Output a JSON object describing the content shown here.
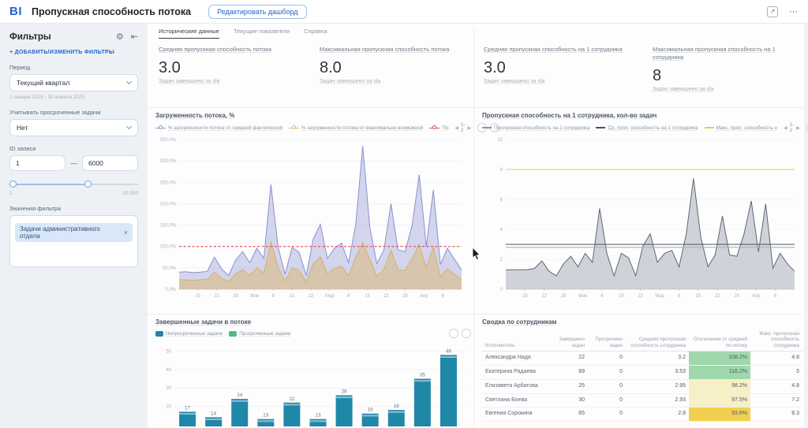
{
  "header": {
    "logo": "BI",
    "title": "Пропускная способность потока",
    "edit_button": "Редактировать дашборд",
    "export_icon": "↗",
    "more_icon": "⋯"
  },
  "sidebar": {
    "title": "Фильтры",
    "gear_icon": "⚙",
    "collapse_icon": "⇤",
    "add_filters_link": "+ ДОБАВИТЬ/ИЗМЕНИТЬ ФИЛЬТРЫ",
    "period": {
      "label": "Период",
      "value": "Текущий квартал",
      "hint": "1 января 2025 - 30 апреля 2025"
    },
    "overdue": {
      "label": "Учитывать просроченные задачи",
      "value": "Нет"
    },
    "id_range": {
      "label": "ID записи",
      "from": "1",
      "to": "6000",
      "min": "1",
      "max": "10 000",
      "dash": "—"
    },
    "filter_values": {
      "label": "Значения фильтра",
      "chip": "Задачи административного отдела",
      "chip_close": "×"
    }
  },
  "tabs": [
    {
      "label": "Исторические данные",
      "active": true
    },
    {
      "label": "Текущие показатели",
      "active": false
    },
    {
      "label": "Справка",
      "active": false
    }
  ],
  "kpis": [
    {
      "label": "Средняя пропускная способность потока",
      "value": "3.0",
      "sub": "Задач завершено за sla"
    },
    {
      "label": "Максимальная пропускная способность потока",
      "value": "8.0",
      "sub": "Задач завершено за sla"
    },
    {
      "label": "Средняя пропускная способность на 1 сотрудника",
      "value": "3.0",
      "sub": "Задач завершено за sla"
    },
    {
      "label": "Максимальная пропускная способность на 1 сотрудника",
      "value": "8",
      "sub": "Задач завершено за sla"
    }
  ],
  "panels": {
    "load_chart": {
      "title": "Загруженность потока, %",
      "legend": [
        {
          "label": "% загруженности потока от средней фактической",
          "color": "#8b90cf",
          "marker": "toggle"
        },
        {
          "label": "% загруженности потока от максимально возможной",
          "color": "#d9bd62",
          "marker": "toggle"
        },
        {
          "label": "По",
          "color": "#e5484d",
          "marker": "toggle"
        }
      ],
      "pagination": "1-2",
      "pager_prev": "◀",
      "pager_next": "▶"
    },
    "per_employee_chart": {
      "title": "Пропускная способность на 1 сотрудника, кол-во задач",
      "legend": [
        {
          "label": "Пропускная способность на 1 сотрудника",
          "color": "#8d97a3",
          "marker": "line"
        },
        {
          "label": "Ср. проп. способность на 1 сотрудника",
          "color": "#4a515c",
          "marker": "line"
        },
        {
          "label": "Макс. проп. способность н",
          "color": "#d6d44e",
          "marker": "line"
        }
      ],
      "pagination": "1-2",
      "pager_prev": "◀",
      "pager_next": "▶"
    },
    "completed_chart": {
      "title": "Завершенные задачи в потоке",
      "legend": [
        {
          "label": "Непросроченные задачи",
          "color": "#1f87a8",
          "marker": "square"
        },
        {
          "label": "Просроченные задачи",
          "color": "#57b87b",
          "marker": "square"
        }
      ]
    },
    "summary_table": {
      "title": "Сводка по сотрудникам",
      "columns": [
        "Исполнитель",
        "Завершено задач",
        "Просрочено задач",
        "Средняя пропускная способность сотрудника",
        "Отклонение от средней по потоку",
        "Макс. пропускная способность сотрудника"
      ],
      "rows": [
        {
          "name": "Александра Нада",
          "done": "22",
          "overdue": "0",
          "avg": "3.2",
          "deviation": "108.2%",
          "deviation_color": "#9fd8ad",
          "max": "4.8"
        },
        {
          "name": "Екатерина Радаева",
          "done": "89",
          "overdue": "0",
          "avg": "3.53",
          "deviation": "116.2%",
          "deviation_color": "#9fd8ad",
          "max": "5"
        },
        {
          "name": "Елизавета Арбатова",
          "done": "25",
          "overdue": "0",
          "avg": "2.95",
          "deviation": "98.2%",
          "deviation_color": "#f7efc6",
          "max": "4.8"
        },
        {
          "name": "Светлана Боева",
          "done": "30",
          "overdue": "0",
          "avg": "2.93",
          "deviation": "97.5%",
          "deviation_color": "#f7efc6",
          "max": "7.2"
        },
        {
          "name": "Евгения Сорокина",
          "done": "65",
          "overdue": "0",
          "avg": "2.8",
          "deviation": "93.8%",
          "deviation_color": "#f2cf4e",
          "max": "8.3"
        }
      ]
    }
  },
  "chart_data": [
    {
      "type": "area",
      "title": "Загруженность потока, %",
      "ylim": [
        0,
        350
      ],
      "yticks": [
        0,
        50,
        100,
        150,
        200,
        250,
        300,
        350
      ],
      "ytick_format": "pct",
      "x_ticks": [
        "15",
        "22",
        "29",
        "Фев",
        "8",
        "15",
        "22",
        "Мар",
        "8",
        "15",
        "22",
        "29",
        "Апр",
        "6"
      ],
      "series": [
        {
          "name": "% загруженности потока от средней фактической",
          "color": "#8b90cf",
          "fill": "rgba(153,158,215,0.42)",
          "values": [
            40,
            41,
            39,
            40,
            42,
            75,
            48,
            32,
            68,
            88,
            62,
            96,
            72,
            245,
            100,
            35,
            98,
            86,
            32,
            118,
            152,
            72,
            96,
            108,
            62,
            150,
            335,
            145,
            60,
            92,
            200,
            92,
            88,
            150,
            268,
            100,
            232,
            58,
            96,
            70,
            45
          ]
        },
        {
          "name": "% загруженности потока от максимально возможной",
          "color": "#d3b264",
          "fill": "rgba(219,184,110,0.5)",
          "values": [
            22,
            22,
            21,
            22,
            23,
            40,
            26,
            18,
            36,
            46,
            33,
            50,
            38,
            112,
            52,
            19,
            50,
            44,
            17,
            60,
            76,
            37,
            49,
            54,
            32,
            75,
            110,
            70,
            30,
            46,
            92,
            46,
            44,
            72,
            105,
            50,
            98,
            29,
            48,
            35,
            23
          ]
        }
      ],
      "ref_lines": [
        {
          "value": 100,
          "color": "#e5484d",
          "style": "dashed",
          "label": "По"
        }
      ]
    },
    {
      "type": "area",
      "title": "Пропускная способность на 1 сотрудника, кол-во задач",
      "ylim": [
        0,
        10
      ],
      "yticks": [
        0,
        2,
        4,
        6,
        8,
        10
      ],
      "ytick_format": "int",
      "x_ticks": [
        "15",
        "22",
        "29",
        "Фев",
        "8",
        "15",
        "22",
        "Мар",
        "8",
        "15",
        "22",
        "29",
        "Апр",
        "6"
      ],
      "series": [
        {
          "name": "Пропускная способность на 1 сотрудника",
          "color": "#5f6672",
          "fill": "rgba(170,175,186,0.55)",
          "values": [
            1.3,
            1.3,
            1.3,
            1.3,
            1.4,
            1.9,
            1.2,
            0.9,
            1.7,
            2.2,
            1.5,
            2.4,
            1.8,
            5.4,
            2.4,
            0.9,
            2.4,
            2.1,
            0.9,
            2.9,
            3.7,
            1.8,
            2.4,
            2.6,
            1.5,
            3.7,
            7.4,
            3.5,
            1.5,
            2.3,
            4.9,
            2.3,
            2.2,
            3.7,
            5.9,
            2.5,
            5.7,
            1.4,
            2.4,
            1.7,
            1.2
          ]
        }
      ],
      "ref_lines": [
        {
          "value": 8,
          "color": "#d6d44e",
          "style": "solid",
          "label": "Макс. проп. способность"
        },
        {
          "value": 3,
          "color": "#4a515c",
          "style": "solid",
          "label": "Ср. проп. способность на 1 сотрудника"
        },
        {
          "value": 2.8,
          "color": "#aab1b9",
          "style": "solid",
          "label": ""
        }
      ]
    },
    {
      "type": "bar",
      "title": "Завершенные задачи в потоке",
      "values": [
        17,
        14,
        24,
        13,
        22,
        13,
        26,
        16,
        18,
        35,
        48
      ],
      "bar_color": "#1f87a8",
      "cap_color": "#86bccd",
      "ylim": [
        9,
        52
      ],
      "yticks": [
        20,
        30,
        40,
        50
      ],
      "legend": [
        "Непросроченные задачи",
        "Просроченные задачи"
      ]
    }
  ]
}
